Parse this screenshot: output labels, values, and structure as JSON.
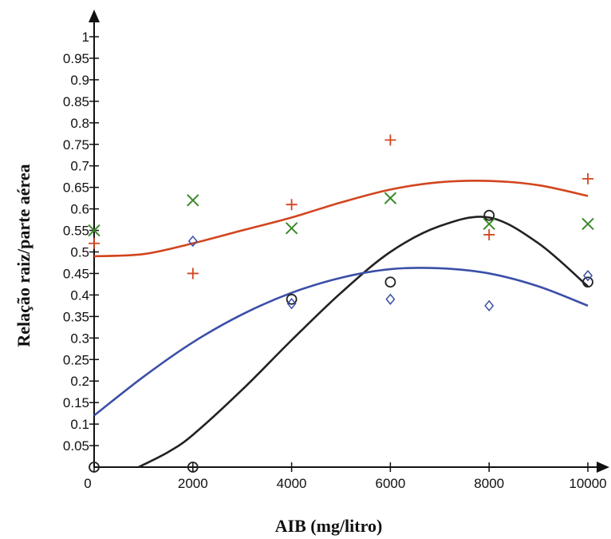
{
  "chart_data": {
    "type": "scatter",
    "title": "",
    "xlabel": "AIB (mg/litro)",
    "ylabel": "Relação raiz/parte aérea",
    "xlim": [
      0,
      10000
    ],
    "ylim": [
      0,
      1
    ],
    "x_ticks": [
      0,
      2000,
      4000,
      6000,
      8000,
      10000
    ],
    "x_tick_labels": [
      "0",
      "2000",
      "4000",
      "6000",
      "8000",
      "10000"
    ],
    "y_ticks": [
      0.05,
      0.1,
      0.15,
      0.2,
      0.25,
      0.3,
      0.35,
      0.4,
      0.45,
      0.5,
      0.55,
      0.6,
      0.65,
      0.7,
      0.75,
      0.8,
      0.85,
      0.9,
      0.95,
      1
    ],
    "y_tick_labels": [
      "0.05",
      "0.1",
      "0.15",
      "0.2",
      "0.25",
      "0.3",
      "0.35",
      "0.4",
      "0.45",
      "0.5",
      "0.55",
      "0.6",
      "0.65",
      "0.7",
      "0.75",
      "0.8",
      "0.85",
      "0.9",
      "0.95",
      "1"
    ],
    "grid": false,
    "legend": "none",
    "series": [
      {
        "marker": "plus",
        "color": "#d2451e",
        "points": [
          [
            0,
            0.52
          ],
          [
            2000,
            0.45
          ],
          [
            4000,
            0.61
          ],
          [
            6000,
            0.76
          ],
          [
            8000,
            0.54
          ],
          [
            10000,
            0.67
          ]
        ],
        "fit": [
          [
            0,
            0.49
          ],
          [
            1000,
            0.495
          ],
          [
            2000,
            0.52
          ],
          [
            3000,
            0.55
          ],
          [
            4000,
            0.58
          ],
          [
            5000,
            0.615
          ],
          [
            6000,
            0.645
          ],
          [
            7000,
            0.662
          ],
          [
            8000,
            0.665
          ],
          [
            9000,
            0.655
          ],
          [
            10000,
            0.63
          ]
        ]
      },
      {
        "marker": "x",
        "color": "#3a8a2a",
        "points": [
          [
            0,
            0.55
          ],
          [
            2000,
            0.62
          ],
          [
            4000,
            0.555
          ],
          [
            6000,
            0.625
          ],
          [
            8000,
            0.565
          ],
          [
            10000,
            0.565
          ]
        ],
        "fit": []
      },
      {
        "marker": "circle",
        "color": "#222222",
        "points": [
          [
            0,
            0.0
          ],
          [
            2000,
            0.0
          ],
          [
            4000,
            0.39
          ],
          [
            6000,
            0.43
          ],
          [
            8000,
            0.585
          ],
          [
            10000,
            0.43
          ]
        ],
        "fit": [
          [
            900,
            0.0
          ],
          [
            1500,
            0.035
          ],
          [
            2000,
            0.075
          ],
          [
            3000,
            0.18
          ],
          [
            4000,
            0.295
          ],
          [
            5000,
            0.405
          ],
          [
            6000,
            0.5
          ],
          [
            7000,
            0.56
          ],
          [
            8000,
            0.58
          ],
          [
            9000,
            0.52
          ],
          [
            10000,
            0.42
          ]
        ]
      },
      {
        "marker": "diamond",
        "color": "#3b4fa8",
        "points": [
          [
            2000,
            0.525
          ],
          [
            4000,
            0.38
          ],
          [
            6000,
            0.39
          ],
          [
            8000,
            0.375
          ],
          [
            10000,
            0.445
          ]
        ],
        "fit": [
          [
            0,
            0.12
          ],
          [
            1000,
            0.21
          ],
          [
            2000,
            0.29
          ],
          [
            3000,
            0.355
          ],
          [
            4000,
            0.405
          ],
          [
            5000,
            0.44
          ],
          [
            6000,
            0.46
          ],
          [
            7000,
            0.462
          ],
          [
            8000,
            0.45
          ],
          [
            9000,
            0.42
          ],
          [
            10000,
            0.375
          ]
        ]
      }
    ]
  }
}
